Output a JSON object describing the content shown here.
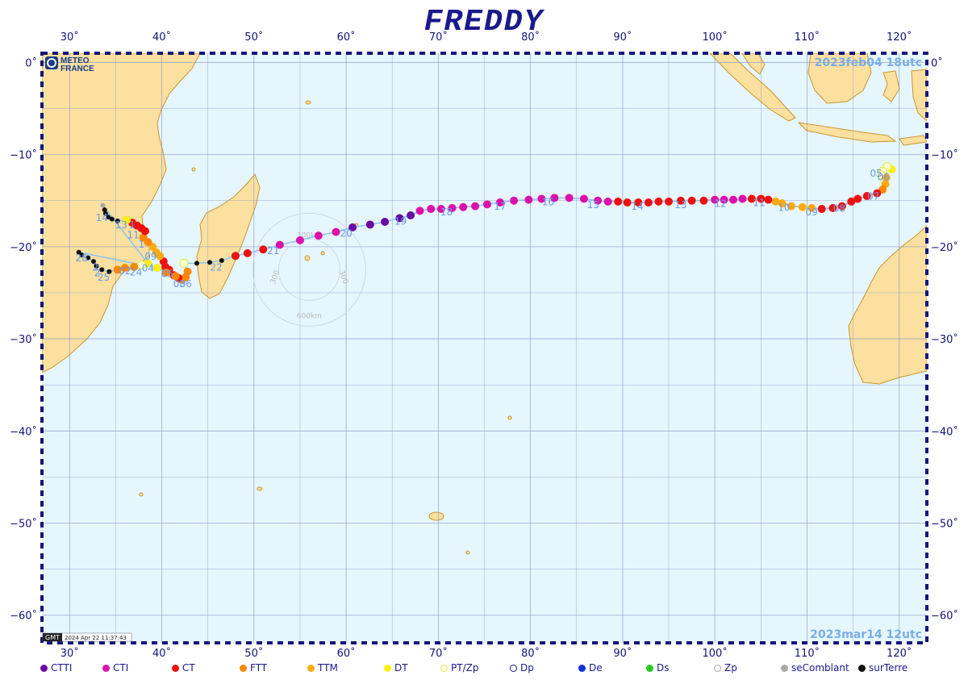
{
  "title": "FREDDY",
  "logo": {
    "line1": "METEO",
    "line2": "FRANCE",
    "icon": "meteo-france-logo-icon"
  },
  "start_label": "2023feb04  18utc",
  "end_label": "2023mar14  12utc",
  "footer_stamp": "2024 Apr 22 11:37:43",
  "gmt_label": "GMT",
  "range_rings": {
    "inner": "300km",
    "outer": "600km",
    "side": "300"
  },
  "axes": {
    "lon_ticks": [
      30,
      40,
      50,
      60,
      70,
      80,
      90,
      100,
      110,
      120
    ],
    "lon_labels": [
      "30˚",
      "40˚",
      "50˚",
      "60˚",
      "70˚",
      "80˚",
      "90˚",
      "100˚",
      "110˚",
      "120˚"
    ],
    "lat_ticks": [
      0,
      -10,
      -20,
      -30,
      -40,
      -50,
      -60
    ],
    "lat_labels": [
      "0˚",
      "−10˚",
      "−20˚",
      "−30˚",
      "−40˚",
      "−50˚",
      "−60˚"
    ],
    "lon_range": [
      27,
      123
    ],
    "lat_range": [
      -63,
      1
    ]
  },
  "colors": {
    "ocean": "#e6f6fd",
    "land": "#fce0a0",
    "coast": "#c9962e",
    "grid": "#8a9bc4",
    "frame": "#14147a",
    "track": "#88c4f0",
    "day_label": "#6a9ae8"
  },
  "legend": [
    {
      "label": "CTTI",
      "color": "#6a0aa0",
      "hollow": false
    },
    {
      "label": "CTI",
      "color": "#dd11aa",
      "hollow": false
    },
    {
      "label": "CT",
      "color": "#ee1111",
      "hollow": false
    },
    {
      "label": "FTT",
      "color": "#ff8800",
      "hollow": false
    },
    {
      "label": "TTM",
      "color": "#ffaa11",
      "hollow": false
    },
    {
      "label": "DT",
      "color": "#ffee11",
      "hollow": false
    },
    {
      "label": "PT/Zp",
      "color": "#ddee44",
      "hollow": true
    },
    {
      "label": "Dp",
      "color": "#1a1a8c",
      "hollow": true
    },
    {
      "label": "De",
      "color": "#1133dd",
      "hollow": false
    },
    {
      "label": "Ds",
      "color": "#22cc22",
      "hollow": false
    },
    {
      "label": "Zp",
      "color": "#aaaaaa",
      "hollow": true
    },
    {
      "label": "seComblant",
      "color": "#aaaaaa",
      "hollow": false
    },
    {
      "label": "surTerre",
      "color": "#111111",
      "hollow": false
    }
  ],
  "track": [
    [
      119.2,
      -11.6,
      "DT"
    ],
    [
      118.7,
      -11.3,
      "PT/Zp"
    ],
    [
      118.2,
      -11.8,
      "PT/Zp"
    ],
    [
      118.0,
      -12.2,
      "PT/Zp"
    ],
    [
      118.6,
      -12.5,
      "TTM"
    ],
    [
      118.5,
      -13.2,
      "TTM"
    ],
    [
      118.2,
      -13.8,
      "FTT"
    ],
    [
      117.6,
      -14.2,
      "CT"
    ],
    [
      116.5,
      -14.5,
      "CT"
    ],
    [
      115.5,
      -14.8,
      "CT"
    ],
    [
      114.8,
      -15.1,
      "CT"
    ],
    [
      113.8,
      -15.6,
      "CT"
    ],
    [
      112.8,
      -15.8,
      "CT"
    ],
    [
      111.6,
      -15.9,
      "CT"
    ],
    [
      110.5,
      -15.8,
      "TTM"
    ],
    [
      109.5,
      -15.7,
      "TTM"
    ],
    [
      108.3,
      -15.6,
      "TTM"
    ],
    [
      107.3,
      -15.3,
      "TTM"
    ],
    [
      106.6,
      -15.1,
      "TTM"
    ],
    [
      105.8,
      -14.9,
      "CT"
    ],
    [
      105.0,
      -14.8,
      "CT"
    ],
    [
      104.0,
      -14.8,
      "CT"
    ],
    [
      103.0,
      -14.8,
      "CTI"
    ],
    [
      102.0,
      -14.9,
      "CTI"
    ],
    [
      101.0,
      -14.9,
      "CTI"
    ],
    [
      100.0,
      -14.9,
      "CTI"
    ],
    [
      98.8,
      -15.0,
      "CT"
    ],
    [
      97.5,
      -15.0,
      "CT"
    ],
    [
      96.3,
      -15.0,
      "CT"
    ],
    [
      95.0,
      -15.1,
      "CT"
    ],
    [
      93.9,
      -15.1,
      "CT"
    ],
    [
      92.8,
      -15.2,
      "CT"
    ],
    [
      91.7,
      -15.2,
      "CT"
    ],
    [
      90.5,
      -15.2,
      "CT"
    ],
    [
      89.5,
      -15.1,
      "CT"
    ],
    [
      88.4,
      -15.1,
      "CTI"
    ],
    [
      87.3,
      -15.0,
      "CTI"
    ],
    [
      85.8,
      -14.8,
      "CTI"
    ],
    [
      84.2,
      -14.7,
      "CTI"
    ],
    [
      82.6,
      -14.7,
      "CTI"
    ],
    [
      81.2,
      -14.8,
      "CTI"
    ],
    [
      79.8,
      -14.9,
      "CTI"
    ],
    [
      78.2,
      -15.0,
      "CTI"
    ],
    [
      76.7,
      -15.2,
      "CTI"
    ],
    [
      75.3,
      -15.4,
      "CTI"
    ],
    [
      74.0,
      -15.6,
      "CTI"
    ],
    [
      72.7,
      -15.7,
      "CTI"
    ],
    [
      71.5,
      -15.8,
      "CTI"
    ],
    [
      70.3,
      -15.9,
      "CTI"
    ],
    [
      69.2,
      -15.9,
      "CTI"
    ],
    [
      68.0,
      -16.1,
      "CTI"
    ],
    [
      67.0,
      -16.6,
      "CTTI"
    ],
    [
      65.8,
      -16.9,
      "CTTI"
    ],
    [
      64.2,
      -17.3,
      "CTTI"
    ],
    [
      62.6,
      -17.6,
      "CTTI"
    ],
    [
      60.7,
      -17.9,
      "CTTI"
    ],
    [
      58.9,
      -18.4,
      "CTI"
    ],
    [
      57.0,
      -18.8,
      "CTI"
    ],
    [
      55.0,
      -19.3,
      "CTI"
    ],
    [
      52.8,
      -19.8,
      "CTI"
    ],
    [
      51.0,
      -20.3,
      "CT"
    ],
    [
      49.3,
      -20.7,
      "CT"
    ],
    [
      48.0,
      -21.0,
      "CT"
    ],
    [
      46.5,
      -21.5,
      "surTerre"
    ],
    [
      45.2,
      -21.7,
      "surTerre"
    ],
    [
      43.8,
      -21.8,
      "surTerre"
    ],
    [
      42.4,
      -21.8,
      "PT/Zp"
    ],
    [
      42.8,
      -22.7,
      "FTT"
    ],
    [
      42.6,
      -23.3,
      "FTT"
    ],
    [
      42.2,
      -23.6,
      "FTT"
    ],
    [
      41.8,
      -23.4,
      "CT"
    ],
    [
      41.3,
      -23.1,
      "CT"
    ],
    [
      40.8,
      -22.5,
      "CT"
    ],
    [
      40.4,
      -22.2,
      "CT"
    ],
    [
      40.2,
      -21.6,
      "CT"
    ],
    [
      39.8,
      -21.0,
      "TTM"
    ],
    [
      39.4,
      -20.6,
      "TTM"
    ],
    [
      39.0,
      -20.0,
      "TTM"
    ],
    [
      38.5,
      -19.5,
      "FTT"
    ],
    [
      38.0,
      -19.0,
      "FTT"
    ],
    [
      38.2,
      -18.3,
      "CT"
    ],
    [
      37.8,
      -18.0,
      "CT"
    ],
    [
      37.3,
      -17.7,
      "CT"
    ],
    [
      36.8,
      -17.4,
      "CT"
    ],
    [
      36.2,
      -17.1,
      "DT"
    ],
    [
      35.2,
      -17.2,
      "surTerre"
    ],
    [
      34.6,
      -17.0,
      "surTerre"
    ],
    [
      34.2,
      -16.8,
      "surTerre"
    ],
    [
      33.9,
      -16.4,
      "surTerre"
    ],
    [
      33.8,
      -16.0,
      "surTerre"
    ],
    [
      33.6,
      -15.5,
      "seComblant"
    ],
    [
      38.5,
      -21.8,
      "DT"
    ],
    [
      37.8,
      -22.0,
      "PT/Zp"
    ],
    [
      37.0,
      -22.2,
      "FTT"
    ],
    [
      36.0,
      -22.3,
      "FTT"
    ],
    [
      35.2,
      -22.5,
      "FTT"
    ],
    [
      34.3,
      -22.7,
      "surTerre"
    ],
    [
      33.5,
      -22.5,
      "surTerre"
    ],
    [
      32.9,
      -22.1,
      "surTerre"
    ],
    [
      32.6,
      -21.6,
      "surTerre"
    ],
    [
      32.0,
      -21.2,
      "surTerre"
    ],
    [
      31.3,
      -20.9,
      "surTerre"
    ],
    [
      31.0,
      -20.6,
      "surTerre"
    ],
    [
      39.5,
      -22.3,
      "DT"
    ],
    [
      40.5,
      -22.8,
      "FTT"
    ],
    [
      41.5,
      -23.2,
      "FTT"
    ]
  ],
  "day_labels": [
    {
      "t": "05",
      "lon": 117.5,
      "lat": -12.4
    },
    {
      "t": "06",
      "lon": 118.3,
      "lat": -12.8
    },
    {
      "t": "07",
      "lon": 117.2,
      "lat": -14.9
    },
    {
      "t": "08",
      "lon": 113.5,
      "lat": -16.2
    },
    {
      "t": "09",
      "lon": 110.5,
      "lat": -16.6
    },
    {
      "t": "10",
      "lon": 107.5,
      "lat": -16.1
    },
    {
      "t": "11",
      "lon": 104.8,
      "lat": -15.6
    },
    {
      "t": "12",
      "lon": 100.6,
      "lat": -15.7
    },
    {
      "t": "13",
      "lon": 96.3,
      "lat": -15.8
    },
    {
      "t": "14",
      "lon": 91.6,
      "lat": -16.0
    },
    {
      "t": "15",
      "lon": 86.8,
      "lat": -15.8
    },
    {
      "t": "16",
      "lon": 81.9,
      "lat": -15.5
    },
    {
      "t": "17",
      "lon": 76.7,
      "lat": -16.0
    },
    {
      "t": "18",
      "lon": 70.9,
      "lat": -16.6
    },
    {
      "t": "19",
      "lon": 65.9,
      "lat": -17.6
    },
    {
      "t": "20",
      "lon": 60.0,
      "lat": -18.9
    },
    {
      "t": "21",
      "lon": 52.1,
      "lat": -20.8
    },
    {
      "t": "22",
      "lon": 45.9,
      "lat": -22.6
    },
    {
      "t": "03",
      "lon": 41.9,
      "lat": -24.4
    },
    {
      "t": "06",
      "lon": 42.6,
      "lat": -24.4
    },
    {
      "t": "05",
      "lon": 40.6,
      "lat": -23.3
    },
    {
      "t": "04",
      "lon": 38.5,
      "lat": -22.7
    },
    {
      "t": "09",
      "lon": 38.8,
      "lat": -21.4
    },
    {
      "t": "1",
      "lon": 37.8,
      "lat": -20.1
    },
    {
      "t": "11",
      "lon": 36.9,
      "lat": -19.1
    },
    {
      "t": "13",
      "lon": 35.6,
      "lat": -18.0
    },
    {
      "t": "1",
      "lon": 36.8,
      "lat": -18.0
    },
    {
      "t": "14",
      "lon": 33.5,
      "lat": -17.2
    },
    {
      "t": "02",
      "lon": 36.0,
      "lat": -23.0
    },
    {
      "t": "24",
      "lon": 37.2,
      "lat": -23.1
    },
    {
      "t": "25",
      "lon": 33.7,
      "lat": -23.7
    },
    {
      "t": "2",
      "lon": 32.8,
      "lat": -22.6
    },
    {
      "t": "28",
      "lon": 31.3,
      "lat": -21.6
    },
    {
      "t": "2",
      "lon": 33.0,
      "lat": -23.2
    }
  ]
}
